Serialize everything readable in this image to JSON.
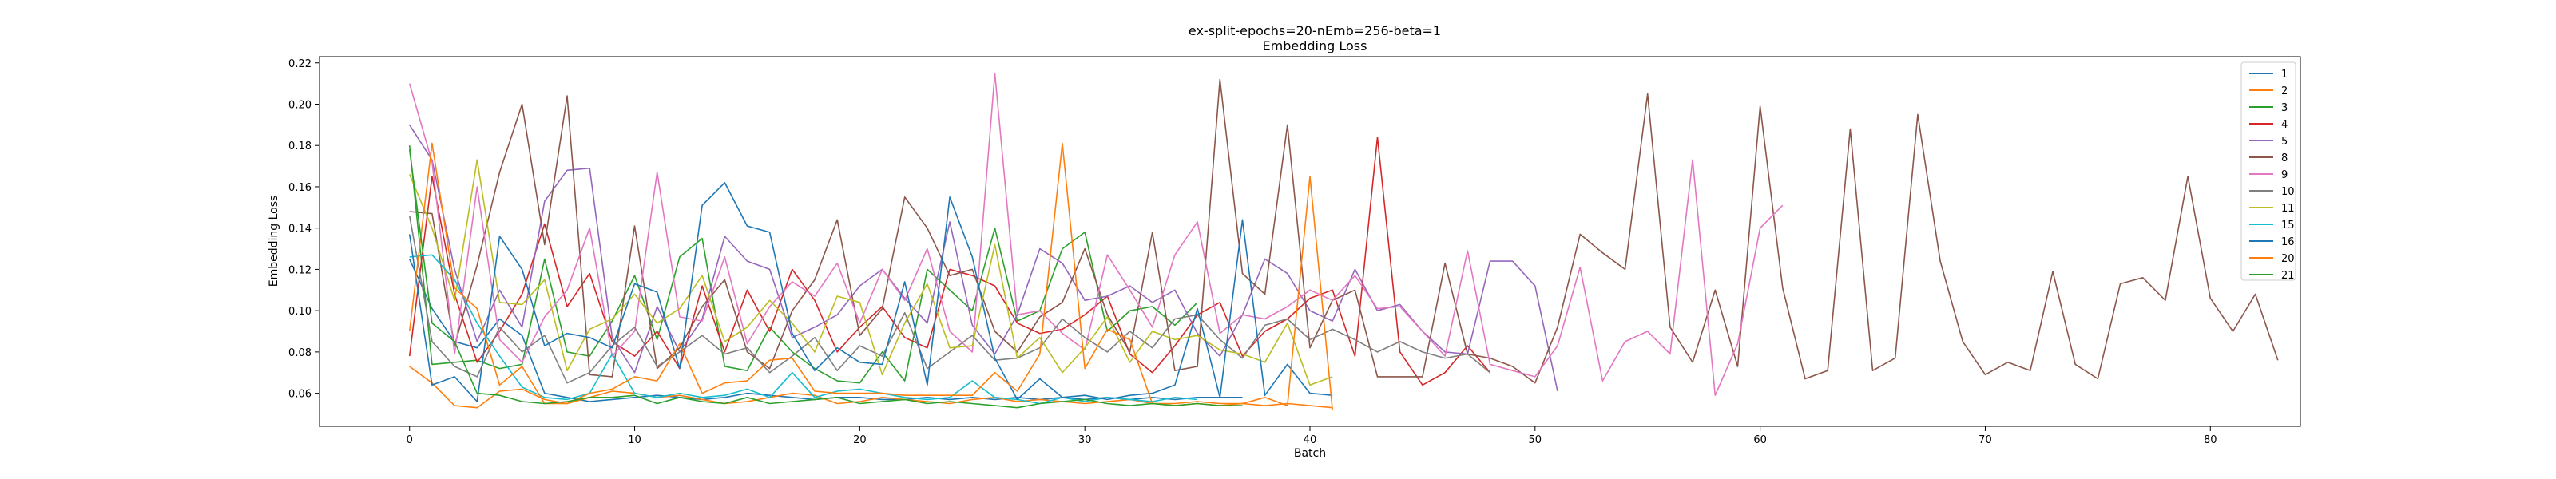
{
  "chart_data": {
    "type": "line",
    "title": [
      "ex-split-epochs=20-nEmb=256-beta=1",
      "Embedding Loss"
    ],
    "xlabel": "Batch",
    "ylabel": "Embedding Loss",
    "xlim": [
      -4,
      84
    ],
    "ylim": [
      0.044,
      0.223
    ],
    "xticks": [
      0,
      10,
      20,
      30,
      40,
      50,
      60,
      70,
      80
    ],
    "yticks": [
      0.06,
      0.08,
      0.1,
      0.12,
      0.14,
      0.16,
      0.18,
      0.2,
      0.22
    ],
    "ytick_labels": [
      "0.06",
      "0.08",
      "0.10",
      "0.12",
      "0.14",
      "0.16",
      "0.18",
      "0.20",
      "0.22"
    ],
    "legend_position": "top-right",
    "grid": false,
    "series": [
      {
        "name": "1",
        "color": "#1f77b4",
        "values": [
          0.125,
          0.101,
          0.085,
          0.082,
          0.096,
          0.088,
          0.06,
          0.058,
          0.056,
          0.057,
          0.058,
          0.059,
          0.058,
          0.057,
          0.058,
          0.06,
          0.059,
          0.058,
          0.057,
          0.058,
          0.058,
          0.057,
          0.057,
          0.058,
          0.057,
          0.058,
          0.057,
          0.058,
          0.057,
          0.058,
          0.057,
          0.058,
          0.057,
          0.058,
          0.057,
          0.058,
          0.058,
          0.058
        ]
      },
      {
        "name": "2",
        "color": "#ff7f0e",
        "values": [
          0.073,
          0.065,
          0.054,
          0.053,
          0.061,
          0.062,
          0.057,
          0.055,
          0.058,
          0.061,
          0.06,
          0.058,
          0.059,
          0.057,
          0.055,
          0.056,
          0.058,
          0.06,
          0.059,
          0.055,
          0.056,
          0.058,
          0.057,
          0.056,
          0.055,
          0.057,
          0.058,
          0.056,
          0.057,
          0.056,
          0.055,
          0.056,
          0.057,
          0.055,
          0.054,
          0.055,
          0.054,
          0.055,
          0.054,
          0.055,
          0.054,
          0.053
        ]
      },
      {
        "name": "3",
        "color": "#2ca02c",
        "values": [
          0.18,
          0.074,
          0.075,
          0.076,
          0.072,
          0.074,
          0.125,
          0.08,
          0.078,
          0.095,
          0.117,
          0.086,
          0.126,
          0.135,
          0.073,
          0.071,
          0.092,
          0.08,
          0.072,
          0.066,
          0.065,
          0.08,
          0.066,
          0.12,
          0.11,
          0.1,
          0.14,
          0.095,
          0.1,
          0.13,
          0.138,
          0.09,
          0.1,
          0.102,
          0.093,
          0.104
        ]
      },
      {
        "name": "4",
        "color": "#d62728",
        "values": [
          0.078,
          0.165,
          0.108,
          0.075,
          0.09,
          0.108,
          0.142,
          0.102,
          0.118,
          0.085,
          0.078,
          0.09,
          0.072,
          0.112,
          0.08,
          0.11,
          0.09,
          0.12,
          0.105,
          0.08,
          0.092,
          0.102,
          0.087,
          0.082,
          0.12,
          0.117,
          0.112,
          0.094,
          0.089,
          0.091,
          0.098,
          0.107,
          0.079,
          0.07,
          0.083,
          0.098,
          0.104,
          0.078,
          0.09,
          0.096,
          0.106,
          0.11,
          0.078,
          0.184,
          0.08,
          0.064,
          0.07,
          0.083,
          0.07
        ]
      },
      {
        "name": "5",
        "color": "#9467bd",
        "values": [
          0.19,
          0.173,
          0.12,
          0.085,
          0.11,
          0.092,
          0.153,
          0.168,
          0.169,
          0.087,
          0.07,
          0.102,
          0.08,
          0.096,
          0.136,
          0.124,
          0.12,
          0.087,
          0.092,
          0.098,
          0.112,
          0.12,
          0.106,
          0.094,
          0.143,
          0.093,
          0.079,
          0.098,
          0.13,
          0.123,
          0.105,
          0.107,
          0.112,
          0.104,
          0.11,
          0.089,
          0.078,
          0.098,
          0.125,
          0.118,
          0.1,
          0.095,
          0.12,
          0.1,
          0.103,
          0.09,
          0.08,
          0.079,
          0.124,
          0.124,
          0.112,
          0.061
        ]
      },
      {
        "name": "8",
        "color": "#8c564b",
        "values": [
          0.148,
          0.147,
          0.083,
          0.122,
          0.167,
          0.2,
          0.132,
          0.204,
          0.069,
          0.068,
          0.141,
          0.072,
          0.082,
          0.102,
          0.115,
          0.08,
          0.072,
          0.1,
          0.115,
          0.144,
          0.088,
          0.101,
          0.155,
          0.14,
          0.117,
          0.12,
          0.09,
          0.08,
          0.097,
          0.104,
          0.13,
          0.098,
          0.08,
          0.138,
          0.071,
          0.073,
          0.212,
          0.118,
          0.108,
          0.19,
          0.082,
          0.105,
          0.11,
          0.068,
          0.068,
          0.068,
          0.123,
          0.079,
          0.077,
          0.073,
          0.065,
          0.092,
          0.137,
          0.128,
          0.12,
          0.205,
          0.092,
          0.075,
          0.11,
          0.073,
          0.199,
          0.111,
          0.067,
          0.071,
          0.188,
          0.071,
          0.077,
          0.195,
          0.124,
          0.085,
          0.069,
          0.075,
          0.071,
          0.119,
          0.074,
          0.067,
          0.113,
          0.116,
          0.105,
          0.165,
          0.106,
          0.09,
          0.108,
          0.076
        ]
      },
      {
        "name": "9",
        "color": "#e377c2",
        "values": [
          0.21,
          0.172,
          0.079,
          0.16,
          0.086,
          0.075,
          0.097,
          0.11,
          0.14,
          0.078,
          0.09,
          0.167,
          0.097,
          0.095,
          0.126,
          0.084,
          0.102,
          0.114,
          0.107,
          0.123,
          0.094,
          0.12,
          0.105,
          0.13,
          0.09,
          0.08,
          0.215,
          0.098,
          0.1,
          0.089,
          0.081,
          0.127,
          0.11,
          0.092,
          0.127,
          0.143,
          0.089,
          0.098,
          0.096,
          0.102,
          0.11,
          0.105,
          0.117,
          0.101,
          0.102,
          0.09,
          0.078,
          0.129,
          0.074,
          0.071,
          0.068,
          0.083,
          0.121,
          0.066,
          0.085,
          0.09,
          0.079,
          0.173,
          0.059,
          0.084,
          0.14,
          0.151
        ]
      },
      {
        "name": "10",
        "color": "#7f7f7f",
        "values": [
          0.146,
          0.085,
          0.073,
          0.068,
          0.092,
          0.08,
          0.088,
          0.065,
          0.07,
          0.083,
          0.092,
          0.073,
          0.08,
          0.088,
          0.079,
          0.082,
          0.07,
          0.078,
          0.087,
          0.071,
          0.083,
          0.078,
          0.099,
          0.072,
          0.08,
          0.088,
          0.076,
          0.077,
          0.082,
          0.096,
          0.087,
          0.08,
          0.09,
          0.082,
          0.096,
          0.098,
          0.086,
          0.077,
          0.093,
          0.096,
          0.086,
          0.091,
          0.086,
          0.08,
          0.085,
          0.08,
          0.077,
          0.079,
          0.07
        ]
      },
      {
        "name": "11",
        "color": "#bcbd22",
        "values": [
          0.166,
          0.14,
          0.105,
          0.173,
          0.104,
          0.103,
          0.115,
          0.071,
          0.091,
          0.096,
          0.108,
          0.094,
          0.101,
          0.117,
          0.085,
          0.092,
          0.105,
          0.094,
          0.08,
          0.107,
          0.104,
          0.069,
          0.094,
          0.113,
          0.082,
          0.083,
          0.132,
          0.077,
          0.087,
          0.07,
          0.082,
          0.097,
          0.075,
          0.09,
          0.086,
          0.088,
          0.081,
          0.079,
          0.075,
          0.094,
          0.064,
          0.068
        ]
      },
      {
        "name": "15",
        "color": "#17becf",
        "values": [
          0.126,
          0.127,
          0.115,
          0.094,
          0.078,
          0.063,
          0.058,
          0.057,
          0.06,
          0.079,
          0.06,
          0.058,
          0.06,
          0.058,
          0.059,
          0.062,
          0.058,
          0.07,
          0.058,
          0.061,
          0.062,
          0.06,
          0.058,
          0.057,
          0.058,
          0.066,
          0.058,
          0.057,
          0.055,
          0.058,
          0.056,
          0.058,
          0.057,
          0.056,
          0.058,
          0.057
        ]
      },
      {
        "name": "16",
        "color": "#1f77b4",
        "values": [
          0.137,
          0.064,
          0.068,
          0.056,
          0.136,
          0.12,
          0.083,
          0.089,
          0.087,
          0.082,
          0.113,
          0.109,
          0.072,
          0.151,
          0.162,
          0.141,
          0.138,
          0.089,
          0.071,
          0.082,
          0.075,
          0.074,
          0.114,
          0.064,
          0.155,
          0.126,
          0.077,
          0.057,
          0.067,
          0.058,
          0.059,
          0.057,
          0.059,
          0.06,
          0.064,
          0.101,
          0.058,
          0.144,
          0.059,
          0.074,
          0.06,
          0.059
        ]
      },
      {
        "name": "20",
        "color": "#ff7f0e",
        "values": [
          0.09,
          0.181,
          0.111,
          0.101,
          0.064,
          0.073,
          0.055,
          0.055,
          0.06,
          0.062,
          0.068,
          0.066,
          0.084,
          0.06,
          0.065,
          0.066,
          0.076,
          0.077,
          0.061,
          0.06,
          0.06,
          0.06,
          0.059,
          0.059,
          0.059,
          0.059,
          0.07,
          0.061,
          0.079,
          0.181,
          0.072,
          0.091,
          0.086,
          0.055,
          0.055,
          0.056,
          0.055,
          0.055,
          0.058,
          0.054,
          0.165,
          0.052
        ]
      },
      {
        "name": "21",
        "color": "#2ca02c",
        "values": [
          0.178,
          0.094,
          0.085,
          0.06,
          0.059,
          0.056,
          0.055,
          0.056,
          0.058,
          0.058,
          0.059,
          0.055,
          0.058,
          0.056,
          0.055,
          0.058,
          0.055,
          0.056,
          0.057,
          0.058,
          0.055,
          0.056,
          0.057,
          0.055,
          0.056,
          0.055,
          0.054,
          0.053,
          0.055,
          0.056,
          0.057,
          0.055,
          0.054,
          0.055,
          0.054,
          0.055,
          0.054,
          0.054
        ]
      }
    ]
  }
}
